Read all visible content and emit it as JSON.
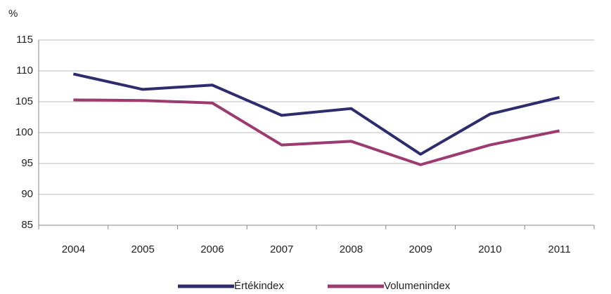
{
  "chart_data": {
    "type": "line",
    "y_unit": "%",
    "categories": [
      "2004",
      "2005",
      "2006",
      "2007",
      "2008",
      "2009",
      "2010",
      "2011"
    ],
    "series": [
      {
        "name": "Értékindex",
        "color": "#2f2c6e",
        "values": [
          109.5,
          107.0,
          107.7,
          102.8,
          103.9,
          96.5,
          103.0,
          105.7
        ]
      },
      {
        "name": "Volumenindex",
        "color": "#9c3b70",
        "values": [
          105.3,
          105.2,
          104.8,
          98.0,
          98.6,
          94.8,
          98.0,
          100.3
        ]
      }
    ],
    "ylim": [
      85,
      115
    ],
    "yticks": [
      85,
      90,
      95,
      100,
      105,
      110,
      115
    ],
    "grid": true,
    "legend": "bottom"
  }
}
